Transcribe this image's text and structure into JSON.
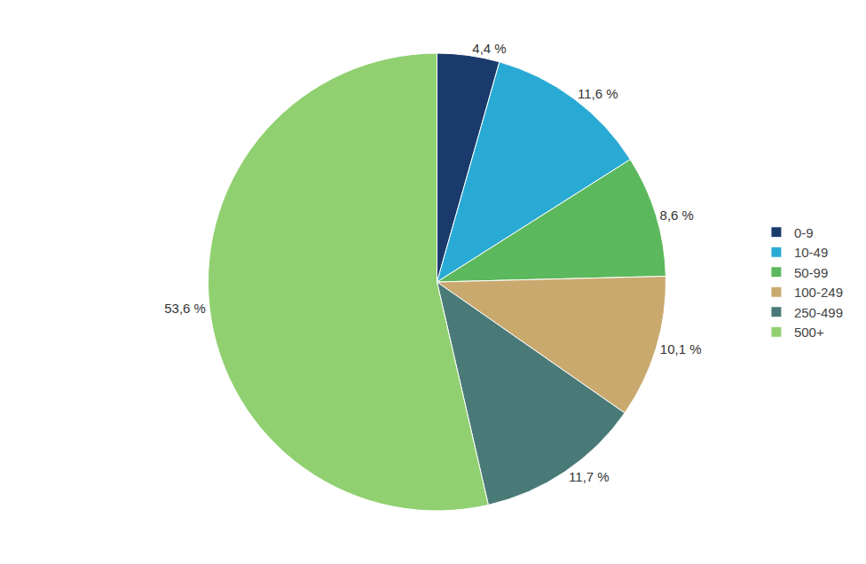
{
  "chart_data": {
    "type": "pie",
    "categories": [
      "0-9",
      "10-49",
      "50-99",
      "100-249",
      "250-499",
      "500+"
    ],
    "values": [
      4.4,
      11.6,
      8.6,
      10.1,
      11.7,
      53.6
    ],
    "value_labels": [
      "4,4 %",
      "11,6 %",
      "8,6 %",
      "10,1 %",
      "11,7 %",
      "53,6 %"
    ],
    "colors": [
      "#1a3a6b",
      "#29aad4",
      "#5cb85c",
      "#c9a96e",
      "#4a7a78",
      "#90d070"
    ],
    "data_labels": true,
    "legend": "right"
  }
}
